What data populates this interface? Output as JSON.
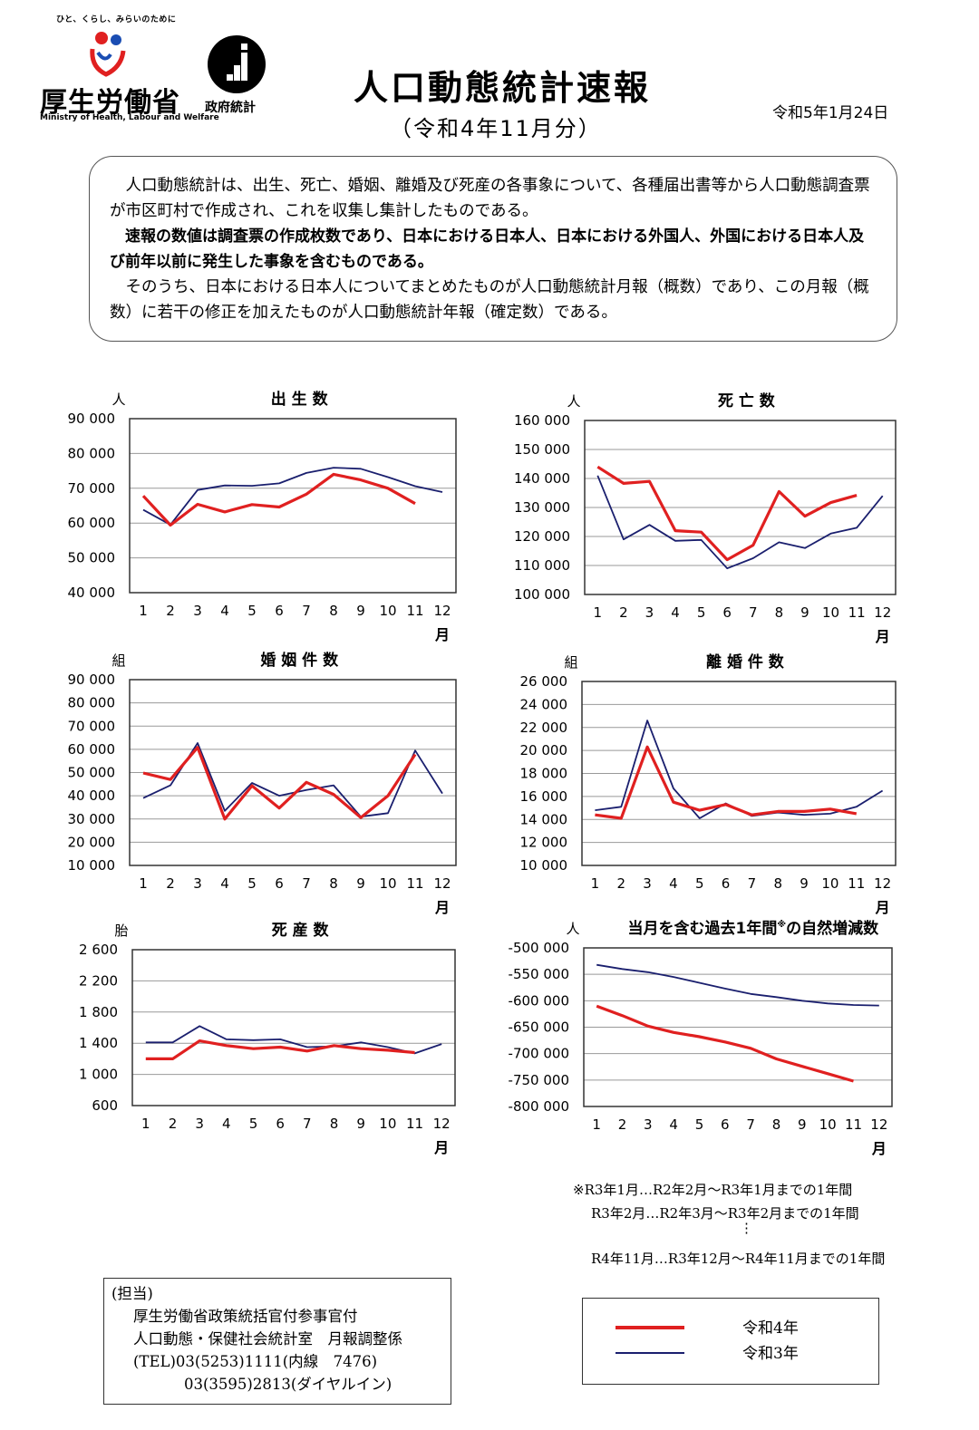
{
  "header": {
    "brand_tagline": "ひと、くらし、みらいのために",
    "brand_name": "厚生労働省",
    "brand_en": "Ministry of Health, Labour and Welfare",
    "stat_label": "政府統計",
    "title": "人口動態統計速報",
    "subtitle": "（令和4年11月分）",
    "date": "令和5年1月24日"
  },
  "intro": {
    "para1": "人口動態統計は、出生、死亡、婚姻、離婚及び死産の各事象について、各種届出書等から人口動態調査票が市区町村で作成され、これを収集し集計したものである。",
    "para2": "速報の数値は調査票の作成枚数であり、日本における日本人、日本における外国人、外国における日本人及び前年以前に発生した事象を含むものである。",
    "para3": "そのうち、日本における日本人についてまとめたものが人口動態統計月報（概数）であり、この月報（概数）に若干の修正を加えたものが人口動態統計年報（確定数）である。"
  },
  "colors": {
    "r4": "#e02020",
    "r3": "#1a1f6e",
    "grid": "#999999"
  },
  "chart_data": [
    {
      "id": "births",
      "type": "line",
      "title": "出 生 数",
      "ylabel": "人",
      "x": [
        1,
        2,
        3,
        4,
        5,
        6,
        7,
        8,
        9,
        10,
        11,
        12
      ],
      "xlabel": "月",
      "ylim": [
        40000,
        90000
      ],
      "yticks": [
        "40 000",
        "50 000",
        "60 000",
        "70 000",
        "80 000",
        "90 000"
      ],
      "ytick_values": [
        40000,
        50000,
        60000,
        70000,
        80000,
        90000
      ],
      "series": [
        {
          "name": "令和4年",
          "values": [
            67800,
            59400,
            65400,
            63200,
            65300,
            64600,
            68300,
            74000,
            72400,
            70000,
            65600,
            null
          ]
        },
        {
          "name": "令和3年",
          "values": [
            63800,
            59500,
            69500,
            70800,
            70700,
            71400,
            74400,
            75900,
            75600,
            73200,
            70600,
            68900
          ]
        }
      ]
    },
    {
      "id": "deaths",
      "type": "line",
      "title": "死 亡 数",
      "ylabel": "人",
      "x": [
        1,
        2,
        3,
        4,
        5,
        6,
        7,
        8,
        9,
        10,
        11,
        12
      ],
      "xlabel": "月",
      "ylim": [
        100000,
        160000
      ],
      "yticks": [
        "100 000",
        "110 000",
        "120 000",
        "130 000",
        "140 000",
        "150 000",
        "160 000"
      ],
      "ytick_values": [
        100000,
        110000,
        120000,
        130000,
        140000,
        150000,
        160000
      ],
      "series": [
        {
          "name": "令和4年",
          "values": [
            144000,
            138300,
            139000,
            122000,
            121500,
            112000,
            117000,
            135500,
            127000,
            131700,
            134200,
            null
          ]
        },
        {
          "name": "令和3年",
          "values": [
            141000,
            119000,
            124000,
            118500,
            118800,
            109000,
            112500,
            118000,
            116000,
            121000,
            123000,
            134000
          ]
        }
      ]
    },
    {
      "id": "marriages",
      "type": "line",
      "title": "婚 姻 件 数",
      "ylabel": "組",
      "x": [
        1,
        2,
        3,
        4,
        5,
        6,
        7,
        8,
        9,
        10,
        11,
        12
      ],
      "xlabel": "月",
      "ylim": [
        10000,
        90000
      ],
      "yticks": [
        "10 000",
        "20 000",
        "30 000",
        "40 000",
        "50 000",
        "60 000",
        "70 000",
        "80 000",
        "90 000"
      ],
      "ytick_values": [
        10000,
        20000,
        30000,
        40000,
        50000,
        60000,
        70000,
        80000,
        90000
      ],
      "series": [
        {
          "name": "令和4年",
          "values": [
            49800,
            47000,
            60800,
            30000,
            44300,
            34700,
            45800,
            40600,
            30600,
            40000,
            57800,
            null
          ]
        },
        {
          "name": "令和3年",
          "values": [
            39000,
            44500,
            62700,
            33500,
            45500,
            40000,
            42500,
            44500,
            31000,
            32500,
            59500,
            41000
          ]
        }
      ]
    },
    {
      "id": "divorces",
      "type": "line",
      "title": "離 婚 件 数",
      "ylabel": "組",
      "x": [
        1,
        2,
        3,
        4,
        5,
        6,
        7,
        8,
        9,
        10,
        11,
        12
      ],
      "xlabel": "月",
      "ylim": [
        10000,
        26000
      ],
      "yticks": [
        "10 000",
        "12 000",
        "14 000",
        "16 000",
        "18 000",
        "20 000",
        "22 000",
        "24 000",
        "26 000"
      ],
      "ytick_values": [
        10000,
        12000,
        14000,
        16000,
        18000,
        20000,
        22000,
        24000,
        26000
      ],
      "series": [
        {
          "name": "令和4年",
          "values": [
            14400,
            14100,
            20300,
            15500,
            14800,
            15300,
            14400,
            14700,
            14700,
            14900,
            14500,
            null
          ]
        },
        {
          "name": "令和3年",
          "values": [
            14800,
            15100,
            22600,
            16700,
            14100,
            15400,
            14300,
            14600,
            14400,
            14500,
            15100,
            16500
          ]
        }
      ]
    },
    {
      "id": "stillbirths",
      "type": "line",
      "title": "死 産 数",
      "ylabel": "胎",
      "x": [
        1,
        2,
        3,
        4,
        5,
        6,
        7,
        8,
        9,
        10,
        11,
        12
      ],
      "xlabel": "月",
      "ylim": [
        600,
        2600
      ],
      "yticks": [
        "600",
        "1 000",
        "1 400",
        "1 800",
        "2 200",
        "2 600"
      ],
      "ytick_values": [
        600,
        1000,
        1400,
        1800,
        2200,
        2600
      ],
      "series": [
        {
          "name": "令和4年",
          "values": [
            1200,
            1200,
            1430,
            1370,
            1330,
            1350,
            1300,
            1370,
            1330,
            1310,
            1280,
            null
          ]
        },
        {
          "name": "令和3年",
          "values": [
            1410,
            1410,
            1620,
            1450,
            1440,
            1450,
            1350,
            1360,
            1410,
            1350,
            1270,
            1390
          ]
        }
      ]
    },
    {
      "id": "natural_change",
      "type": "line",
      "title": "当月を含む過去1年間※の自然増減数",
      "title_main": "当月を含む過去1年間",
      "title_mark": "※",
      "title_tail": "の自然増減数",
      "ylabel": "人",
      "x": [
        1,
        2,
        3,
        4,
        5,
        6,
        7,
        8,
        9,
        10,
        11,
        12
      ],
      "xlabel": "月",
      "ylim": [
        -800000,
        -500000
      ],
      "yticks": [
        "-800 000",
        "-750 000",
        "-700 000",
        "-650 000",
        "-600 000",
        "-550 000",
        "-500 000"
      ],
      "ytick_values": [
        -800000,
        -750000,
        -700000,
        -650000,
        -600000,
        -550000,
        -500000
      ],
      "series": [
        {
          "name": "令和4年",
          "values": [
            -610000,
            -628000,
            -648000,
            -660000,
            -668000,
            -678000,
            -690000,
            -710000,
            -724000,
            -738000,
            -752000,
            null
          ]
        },
        {
          "name": "令和3年",
          "values": [
            -532000,
            -540000,
            -546000,
            -555000,
            -566000,
            -577000,
            -587000,
            -593000,
            -600000,
            -605000,
            -608000,
            -609000
          ]
        }
      ]
    }
  ],
  "notes": {
    "line1": "※R3年1月…R2年2月～R3年1月までの1年間",
    "line2": "R3年2月…R2年3月～R3年2月までの1年間",
    "dots": "⋮",
    "line3": "R4年11月…R3年12月～R4年11月までの1年間"
  },
  "contact": {
    "label": "(担当)",
    "dept": "厚生労働省政策統括官付参事官付",
    "office": "人口動態・保健社会統計室　月報調整係",
    "tel": "(TEL)03(5253)1111(内線　7476)",
    "dial": "03(3595)2813(ダイヤルイン)"
  },
  "legend": {
    "r4": "令和4年",
    "r3": "令和3年"
  }
}
